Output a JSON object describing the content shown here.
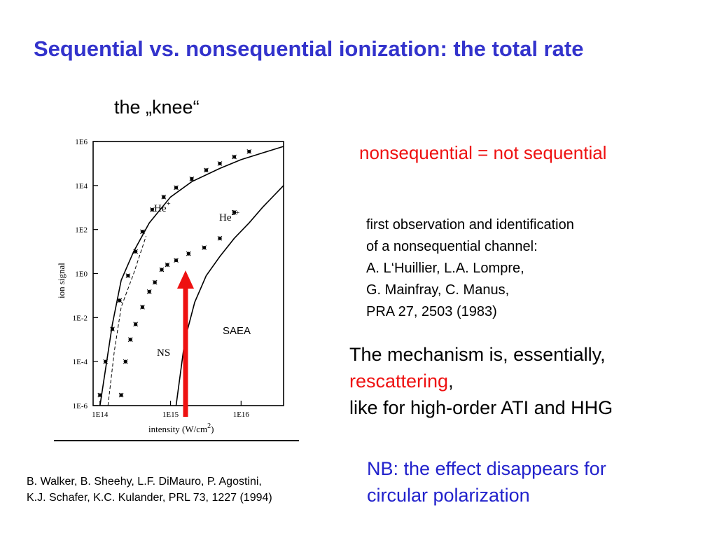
{
  "slide": {
    "title": "Sequential vs. nonsequential ionization: the total rate",
    "knee_label": "the „knee“",
    "nonsequential_def": "nonsequential = not sequential",
    "first_observation": [
      "first observation and identification",
      "of a nonsequential channel:",
      "A. L‘Huillier, L.A. Lompre,",
      "G. Mainfray, C. Manus,",
      "PRA 27, 2503 (1983)"
    ],
    "mechanism": {
      "line1": "The mechanism is, essentially,",
      "keyword": "rescattering",
      "comma": ",",
      "line3": "like for high-order ATI and HHG"
    },
    "nb": [
      "NB: the effect disappears for",
      "circular polarization"
    ],
    "reference": [
      "B. Walker, B. Sheehy, L.F. DiMauro, P. Agostini,",
      "K.J. Schafer, K.C. Kulander, PRL 73, 1227 (1994)"
    ],
    "colors": {
      "title": "#3333cc",
      "highlight": "#ee1111",
      "nb": "#2222cc",
      "arrow": "#ee1111"
    }
  },
  "chart_data": {
    "type": "scatter",
    "xlabel": "intensity (W/cm",
    "xlabel_sup": "2",
    "xlabel_end": ")",
    "ylabel": "ion signal",
    "x_scale": "log",
    "y_scale": "log",
    "xlim": [
      80000000000000.0,
      4e+16
    ],
    "ylim": [
      1e-06,
      1000000.0
    ],
    "x_ticks": [
      {
        "value": 100000000000000.0,
        "label": "1E14"
      },
      {
        "value": 1000000000000000.0,
        "label": "1E15"
      },
      {
        "value": 1e+16,
        "label": "1E16"
      }
    ],
    "y_ticks": [
      {
        "value": 1000000.0,
        "label": "1E6"
      },
      {
        "value": 10000.0,
        "label": "1E4"
      },
      {
        "value": 100.0,
        "label": "1E2"
      },
      {
        "value": 1.0,
        "label": "1E0"
      },
      {
        "value": 0.01,
        "label": "1E-2"
      },
      {
        "value": 0.0001,
        "label": "1E-4"
      },
      {
        "value": 1e-06,
        "label": "1E-6"
      }
    ],
    "annotations": {
      "he_plus": "He",
      "he_plus_sup": "+",
      "he_2plus": "He",
      "he_2plus_sup": "2+",
      "ns": "NS",
      "saea": "SAEA"
    },
    "series": [
      {
        "name": "He+",
        "marker": "x",
        "x": [
          100000000000000.0,
          120000000000000.0,
          150000000000000.0,
          190000000000000.0,
          250000000000000.0,
          320000000000000.0,
          400000000000000.0,
          550000000000000.0,
          800000000000000.0,
          1200000000000000.0,
          2000000000000000.0,
          3200000000000000.0,
          5000000000000000.0,
          8000000000000000.0,
          1.3e+16
        ],
        "y": [
          3e-06,
          0.0001,
          0.003,
          0.06,
          0.8,
          10,
          80,
          800,
          3000.0,
          8000.0,
          20000.0,
          50000.0,
          100000.0,
          200000.0,
          350000.0
        ]
      },
      {
        "name": "He2+",
        "marker": "x",
        "x": [
          200000000000000.0,
          230000000000000.0,
          270000000000000.0,
          320000000000000.0,
          400000000000000.0,
          500000000000000.0,
          600000000000000.0,
          750000000000000.0,
          900000000000000.0,
          1200000000000000.0,
          1800000000000000.0,
          3000000000000000.0,
          5000000000000000.0,
          8000000000000000.0
        ],
        "y": [
          3e-06,
          0.0001,
          0.001,
          0.005,
          0.03,
          0.15,
          0.4,
          1.5,
          2.5,
          4,
          8,
          15,
          40,
          600
        ]
      },
      {
        "name": "He+ (SAEA calc.)",
        "marker": "line",
        "x": [
          100000000000000.0,
          150000000000000.0,
          200000000000000.0,
          300000000000000.0,
          500000000000000.0,
          1000000000000000.0,
          2000000000000000.0,
          5000000000000000.0,
          1e+16,
          2e+16,
          4e+16
        ],
        "y": [
          1e-06,
          0.005,
          0.5,
          10,
          200,
          3000.0,
          15000.0,
          60000.0,
          150000.0,
          300000.0,
          600000.0
        ]
      },
      {
        "name": "He2+ (SAEA calc.)",
        "marker": "line",
        "x": [
          1200000000000000.0,
          1600000000000000.0,
          2200000000000000.0,
          3200000000000000.0,
          5000000000000000.0,
          8000000000000000.0,
          1.3e+16,
          2e+16,
          4e+16
        ],
        "y": [
          1e-06,
          0.001,
          0.05,
          0.8,
          6,
          40,
          200,
          1000.0,
          10000.0
        ]
      },
      {
        "name": "NS",
        "marker": "dash",
        "x": [
          130000000000000.0,
          160000000000000.0,
          200000000000000.0,
          300000000000000.0,
          450000000000000.0
        ],
        "y": [
          1e-06,
          0.0003,
          0.03,
          1,
          50
        ]
      }
    ]
  }
}
